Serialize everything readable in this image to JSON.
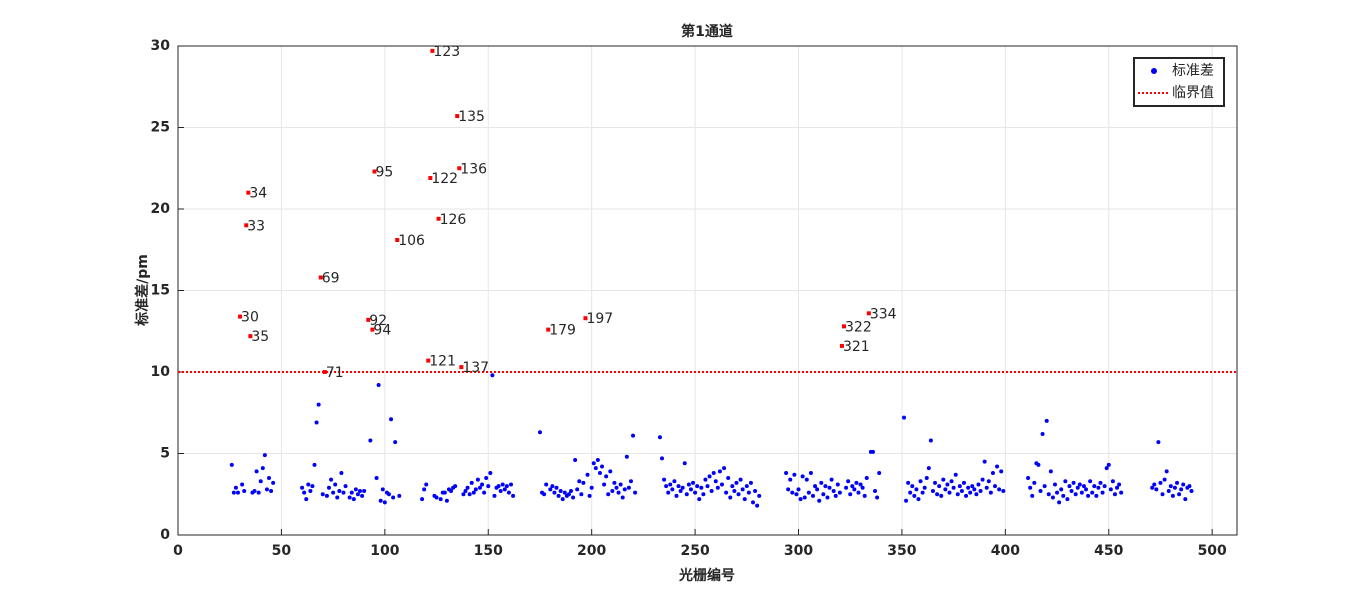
{
  "chart_data": {
    "type": "scatter",
    "title": "第1通道",
    "x_label": "光栅编号",
    "y_label": "标准差/pm",
    "xlim": [
      0,
      512
    ],
    "ylim": [
      0,
      30
    ],
    "xticks": [
      0,
      50,
      100,
      150,
      200,
      250,
      300,
      350,
      400,
      450,
      500
    ],
    "yticks": [
      0,
      5,
      10,
      15,
      20,
      25,
      30
    ],
    "grid": true,
    "legend": "northeast",
    "series": [
      {
        "name": "标准差",
        "color": "#0000ff",
        "x": [
          26,
          27,
          28,
          29,
          31,
          32,
          36,
          37,
          38,
          39,
          40,
          41,
          42,
          43,
          44,
          45,
          46,
          60,
          61,
          62,
          63,
          64,
          65,
          66,
          67,
          68,
          70,
          72,
          73,
          74,
          75,
          76,
          77,
          78,
          79,
          80,
          81,
          83,
          84,
          85,
          86,
          87,
          88,
          89,
          90,
          93,
          96,
          97,
          98,
          99,
          100,
          101,
          102,
          103,
          104,
          105,
          107,
          118,
          119,
          120,
          124,
          125,
          127,
          128,
          129,
          130,
          131,
          132,
          133,
          134,
          138,
          139,
          140,
          141,
          142,
          143,
          144,
          145,
          146,
          147,
          148,
          149,
          150,
          151,
          152,
          153,
          154,
          155,
          156,
          157,
          158,
          159,
          160,
          161,
          162,
          175,
          176,
          177,
          178,
          180,
          181,
          182,
          183,
          184,
          185,
          186,
          187,
          188,
          189,
          190,
          191,
          192,
          193,
          194,
          195,
          196,
          198,
          199,
          200,
          201,
          202,
          203,
          204,
          205,
          206,
          207,
          208,
          209,
          210,
          211,
          212,
          213,
          214,
          215,
          216,
          217,
          218,
          219,
          220,
          221,
          233,
          234,
          235,
          236,
          237,
          238,
          239,
          240,
          241,
          242,
          243,
          244,
          245,
          246,
          247,
          248,
          249,
          250,
          251,
          252,
          253,
          254,
          255,
          256,
          257,
          258,
          259,
          260,
          261,
          262,
          263,
          264,
          265,
          266,
          267,
          268,
          269,
          270,
          271,
          272,
          273,
          274,
          275,
          276,
          277,
          278,
          279,
          280,
          281,
          294,
          295,
          296,
          297,
          298,
          299,
          300,
          301,
          302,
          303,
          304,
          305,
          306,
          307,
          308,
          309,
          310,
          311,
          312,
          313,
          314,
          315,
          316,
          317,
          318,
          319,
          320,
          323,
          324,
          325,
          326,
          327,
          328,
          329,
          330,
          331,
          332,
          333,
          335,
          336,
          337,
          338,
          339,
          351,
          352,
          353,
          354,
          355,
          356,
          357,
          358,
          359,
          360,
          361,
          362,
          363,
          364,
          365,
          366,
          367,
          368,
          369,
          370,
          371,
          372,
          373,
          374,
          375,
          376,
          377,
          378,
          379,
          380,
          381,
          382,
          383,
          384,
          385,
          386,
          387,
          388,
          389,
          390,
          391,
          392,
          393,
          394,
          395,
          396,
          397,
          398,
          399,
          411,
          412,
          413,
          414,
          415,
          416,
          417,
          418,
          419,
          420,
          421,
          422,
          423,
          424,
          425,
          426,
          427,
          428,
          429,
          430,
          431,
          432,
          433,
          434,
          435,
          436,
          437,
          438,
          439,
          440,
          441,
          442,
          443,
          444,
          445,
          446,
          447,
          448,
          449,
          450,
          451,
          452,
          453,
          454,
          455,
          456,
          471,
          472,
          473,
          474,
          475,
          476,
          477,
          478,
          479,
          480,
          481,
          482,
          483,
          484,
          485,
          486,
          487,
          488,
          489,
          490
        ],
        "values": [
          4.3,
          2.6,
          2.9,
          2.6,
          3.1,
          2.7,
          2.6,
          2.7,
          3.9,
          2.6,
          3.3,
          4.1,
          4.9,
          2.8,
          3.5,
          2.7,
          3.2,
          2.9,
          2.6,
          2.2,
          3.1,
          2.7,
          3.0,
          4.3,
          6.9,
          8.0,
          2.5,
          2.4,
          2.9,
          3.4,
          2.6,
          3.1,
          2.3,
          2.7,
          3.8,
          2.6,
          3.0,
          2.3,
          2.6,
          2.2,
          2.8,
          2.5,
          2.7,
          2.4,
          2.7,
          5.8,
          3.5,
          9.2,
          2.1,
          2.8,
          2.0,
          2.6,
          2.5,
          7.1,
          2.3,
          5.7,
          2.4,
          2.2,
          2.8,
          3.1,
          2.4,
          2.3,
          2.2,
          2.6,
          2.6,
          2.1,
          2.8,
          2.7,
          2.9,
          3.0,
          2.5,
          2.7,
          2.9,
          2.5,
          3.2,
          2.6,
          2.8,
          3.4,
          2.9,
          3.1,
          2.6,
          3.5,
          3.0,
          3.8,
          9.8,
          2.4,
          2.9,
          3.0,
          2.7,
          3.1,
          2.8,
          3.0,
          2.6,
          3.1,
          2.4,
          6.3,
          2.6,
          2.5,
          3.1,
          2.8,
          3.0,
          2.6,
          2.9,
          2.4,
          2.7,
          2.2,
          2.6,
          2.4,
          2.5,
          2.7,
          2.3,
          4.6,
          2.8,
          3.3,
          2.5,
          3.2,
          3.7,
          2.4,
          2.9,
          4.4,
          4.1,
          4.6,
          3.8,
          4.2,
          3.1,
          3.6,
          2.5,
          3.9,
          2.7,
          3.2,
          2.9,
          2.6,
          3.1,
          2.3,
          2.8,
          4.8,
          2.9,
          3.3,
          6.1,
          2.6,
          6.0,
          4.7,
          3.4,
          3.0,
          2.6,
          3.1,
          2.8,
          3.3,
          2.4,
          3.0,
          2.7,
          2.9,
          4.4,
          2.5,
          3.1,
          2.8,
          3.2,
          2.6,
          3.0,
          2.2,
          2.9,
          2.5,
          3.4,
          3.0,
          3.6,
          2.7,
          3.8,
          3.3,
          2.9,
          3.9,
          3.1,
          4.1,
          2.6,
          3.5,
          2.3,
          3.0,
          2.7,
          3.2,
          2.5,
          3.4,
          2.8,
          2.2,
          3.0,
          2.6,
          3.2,
          2.0,
          2.7,
          1.8,
          2.4,
          3.8,
          2.8,
          3.4,
          2.6,
          3.7,
          2.5,
          2.8,
          2.2,
          3.6,
          2.3,
          3.4,
          2.6,
          3.8,
          2.4,
          3.0,
          2.8,
          2.1,
          3.2,
          2.5,
          3.0,
          2.3,
          2.9,
          3.4,
          2.7,
          2.4,
          3.1,
          2.6,
          2.9,
          3.3,
          2.5,
          3.0,
          2.8,
          3.2,
          2.6,
          3.1,
          2.9,
          2.4,
          3.5,
          5.1,
          5.1,
          2.7,
          2.3,
          3.8,
          7.2,
          2.1,
          3.2,
          2.6,
          3.0,
          2.4,
          2.8,
          2.2,
          3.3,
          2.6,
          2.9,
          3.5,
          4.1,
          5.8,
          2.7,
          3.2,
          2.5,
          3.0,
          2.4,
          3.4,
          2.8,
          3.1,
          2.6,
          3.3,
          2.9,
          3.7,
          2.5,
          3.0,
          2.7,
          3.2,
          2.4,
          2.9,
          2.6,
          3.0,
          2.8,
          2.5,
          3.1,
          2.7,
          3.4,
          4.5,
          2.9,
          3.3,
          2.6,
          3.8,
          3.0,
          4.2,
          2.8,
          3.9,
          2.7,
          3.5,
          2.9,
          2.4,
          3.2,
          4.4,
          4.3,
          2.7,
          6.2,
          3.0,
          7.0,
          2.5,
          3.9,
          2.3,
          3.1,
          2.6,
          2.0,
          2.8,
          2.4,
          3.3,
          2.2,
          3.0,
          2.7,
          3.2,
          2.5,
          2.9,
          3.1,
          2.6,
          3.0,
          2.8,
          2.4,
          3.3,
          2.6,
          3.0,
          2.4,
          2.9,
          3.2,
          2.6,
          3.0,
          4.1,
          4.3,
          2.8,
          3.3,
          2.5,
          2.9,
          3.1,
          2.6,
          2.9,
          3.1,
          2.8,
          5.7,
          3.2,
          2.5,
          3.4,
          3.9,
          2.7,
          3.0,
          2.4,
          2.9,
          3.2,
          2.5,
          2.8,
          3.1,
          2.2,
          2.9,
          3.0,
          2.7
        ]
      },
      {
        "name": "临界值",
        "color": "#ff0000",
        "line": "dotted",
        "value": 10
      }
    ],
    "highlight": {
      "color": "#ff0000",
      "x": [
        30,
        33,
        34,
        35,
        69,
        71,
        92,
        94,
        95,
        106,
        121,
        122,
        123,
        126,
        135,
        136,
        137,
        179,
        197,
        321,
        322,
        334
      ],
      "values": [
        13.4,
        19.0,
        21.0,
        12.2,
        15.8,
        10.0,
        13.2,
        12.6,
        22.3,
        18.1,
        10.7,
        21.9,
        29.7,
        19.4,
        25.7,
        22.5,
        10.3,
        12.6,
        13.3,
        11.6,
        12.8,
        13.6
      ]
    }
  }
}
